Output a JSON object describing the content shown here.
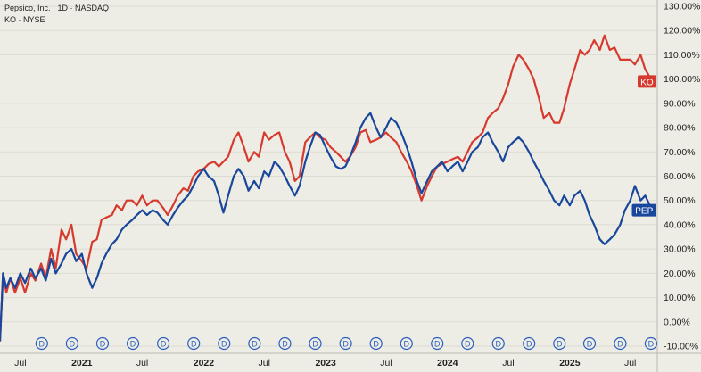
{
  "header": {
    "main_symbol": "Pepsico, Inc. · 1D · NASDAQ",
    "compare_symbol": "KO · NYSE"
  },
  "chart_data": {
    "type": "line",
    "title": "",
    "xlabel": "",
    "ylabel": "",
    "y_unit": "%",
    "ylim": [
      -10,
      130
    ],
    "grid": "horizontal",
    "y_ticks": [
      "130.00%",
      "120.00%",
      "110.00%",
      "100.00%",
      "90.00%",
      "80.00%",
      "70.00%",
      "60.00%",
      "50.00%",
      "40.00%",
      "30.00%",
      "20.00%",
      "10.00%",
      "0.00%",
      "-10.00%"
    ],
    "x_range": [
      "2020-05-01",
      "2025-09-20"
    ],
    "x_ticks": [
      {
        "date": "2020-07-01",
        "label": "Jul",
        "bold": false
      },
      {
        "date": "2021-01-01",
        "label": "2021",
        "bold": true
      },
      {
        "date": "2021-07-01",
        "label": "Jul",
        "bold": false
      },
      {
        "date": "2022-01-01",
        "label": "2022",
        "bold": true
      },
      {
        "date": "2022-07-01",
        "label": "Jul",
        "bold": false
      },
      {
        "date": "2023-01-01",
        "label": "2023",
        "bold": true
      },
      {
        "date": "2023-07-01",
        "label": "Jul",
        "bold": false
      },
      {
        "date": "2024-01-01",
        "label": "2024",
        "bold": true
      },
      {
        "date": "2024-07-01",
        "label": "Jul",
        "bold": false
      },
      {
        "date": "2025-01-01",
        "label": "2025",
        "bold": true
      },
      {
        "date": "2025-07-01",
        "label": "Jul",
        "bold": false
      }
    ],
    "dividend_marker": {
      "label": "D",
      "dates": [
        "2020-09-03",
        "2020-12-03",
        "2021-03-04",
        "2021-06-03",
        "2021-09-02",
        "2021-12-02",
        "2022-03-03",
        "2022-06-02",
        "2022-09-01",
        "2022-12-01",
        "2023-03-02",
        "2023-06-01",
        "2023-08-31",
        "2023-12-01",
        "2024-03-01",
        "2024-06-01",
        "2024-09-01",
        "2024-12-01",
        "2025-03-01",
        "2025-06-01",
        "2025-09-01"
      ]
    },
    "series": [
      {
        "name": "KO",
        "color": "#d63a2f",
        "last_value": 99,
        "points": [
          [
            "2020-05-01",
            -8
          ],
          [
            "2020-05-10",
            20
          ],
          [
            "2020-05-20",
            12
          ],
          [
            "2020-06-01",
            18
          ],
          [
            "2020-06-15",
            12
          ],
          [
            "2020-07-01",
            18
          ],
          [
            "2020-07-15",
            12
          ],
          [
            "2020-08-01",
            20
          ],
          [
            "2020-08-15",
            17
          ],
          [
            "2020-09-01",
            24
          ],
          [
            "2020-09-15",
            18
          ],
          [
            "2020-10-01",
            30
          ],
          [
            "2020-10-15",
            22
          ],
          [
            "2020-11-01",
            38
          ],
          [
            "2020-11-15",
            34
          ],
          [
            "2020-12-01",
            40
          ],
          [
            "2020-12-15",
            28
          ],
          [
            "2021-01-01",
            25
          ],
          [
            "2021-01-15",
            22
          ],
          [
            "2021-02-01",
            33
          ],
          [
            "2021-02-15",
            34
          ],
          [
            "2021-03-01",
            42
          ],
          [
            "2021-03-15",
            43
          ],
          [
            "2021-04-01",
            44
          ],
          [
            "2021-04-15",
            48
          ],
          [
            "2021-05-01",
            46
          ],
          [
            "2021-05-15",
            50
          ],
          [
            "2021-06-01",
            50
          ],
          [
            "2021-06-15",
            48
          ],
          [
            "2021-07-01",
            52
          ],
          [
            "2021-07-15",
            48
          ],
          [
            "2021-08-01",
            50
          ],
          [
            "2021-08-15",
            50
          ],
          [
            "2021-09-01",
            47
          ],
          [
            "2021-09-15",
            44
          ],
          [
            "2021-10-01",
            48
          ],
          [
            "2021-10-15",
            52
          ],
          [
            "2021-11-01",
            55
          ],
          [
            "2021-11-15",
            54
          ],
          [
            "2021-12-01",
            60
          ],
          [
            "2021-12-15",
            62
          ],
          [
            "2022-01-01",
            63
          ],
          [
            "2022-01-15",
            65
          ],
          [
            "2022-02-01",
            66
          ],
          [
            "2022-02-15",
            64
          ],
          [
            "2022-03-01",
            66
          ],
          [
            "2022-03-15",
            68
          ],
          [
            "2022-04-01",
            75
          ],
          [
            "2022-04-15",
            78
          ],
          [
            "2022-05-01",
            72
          ],
          [
            "2022-05-15",
            66
          ],
          [
            "2022-06-01",
            70
          ],
          [
            "2022-06-15",
            68
          ],
          [
            "2022-07-01",
            78
          ],
          [
            "2022-07-15",
            75
          ],
          [
            "2022-08-01",
            77
          ],
          [
            "2022-08-15",
            78
          ],
          [
            "2022-09-01",
            70
          ],
          [
            "2022-09-15",
            66
          ],
          [
            "2022-10-01",
            58
          ],
          [
            "2022-10-15",
            60
          ],
          [
            "2022-11-01",
            74
          ],
          [
            "2022-11-15",
            76
          ],
          [
            "2022-12-01",
            78
          ],
          [
            "2022-12-15",
            76
          ],
          [
            "2023-01-01",
            75
          ],
          [
            "2023-01-15",
            72
          ],
          [
            "2023-02-01",
            70
          ],
          [
            "2023-02-15",
            68
          ],
          [
            "2023-03-01",
            66
          ],
          [
            "2023-03-15",
            68
          ],
          [
            "2023-04-01",
            72
          ],
          [
            "2023-04-15",
            78
          ],
          [
            "2023-05-01",
            79
          ],
          [
            "2023-05-15",
            74
          ],
          [
            "2023-06-01",
            75
          ],
          [
            "2023-06-15",
            76
          ],
          [
            "2023-07-01",
            78
          ],
          [
            "2023-07-15",
            76
          ],
          [
            "2023-08-01",
            74
          ],
          [
            "2023-08-15",
            70
          ],
          [
            "2023-09-01",
            66
          ],
          [
            "2023-09-15",
            62
          ],
          [
            "2023-10-01",
            56
          ],
          [
            "2023-10-15",
            50
          ],
          [
            "2023-11-01",
            56
          ],
          [
            "2023-11-15",
            60
          ],
          [
            "2023-12-01",
            64
          ],
          [
            "2023-12-15",
            65
          ],
          [
            "2024-01-01",
            66
          ],
          [
            "2024-01-15",
            67
          ],
          [
            "2024-02-01",
            68
          ],
          [
            "2024-02-15",
            66
          ],
          [
            "2024-03-01",
            70
          ],
          [
            "2024-03-15",
            74
          ],
          [
            "2024-04-01",
            76
          ],
          [
            "2024-04-15",
            78
          ],
          [
            "2024-05-01",
            84
          ],
          [
            "2024-05-15",
            86
          ],
          [
            "2024-06-01",
            88
          ],
          [
            "2024-06-15",
            92
          ],
          [
            "2024-07-01",
            98
          ],
          [
            "2024-07-15",
            105
          ],
          [
            "2024-08-01",
            110
          ],
          [
            "2024-08-15",
            108
          ],
          [
            "2024-09-01",
            104
          ],
          [
            "2024-09-15",
            100
          ],
          [
            "2024-10-01",
            92
          ],
          [
            "2024-10-15",
            84
          ],
          [
            "2024-11-01",
            86
          ],
          [
            "2024-11-15",
            82
          ],
          [
            "2024-12-01",
            82
          ],
          [
            "2024-12-15",
            88
          ],
          [
            "2025-01-01",
            98
          ],
          [
            "2025-01-15",
            104
          ],
          [
            "2025-02-01",
            112
          ],
          [
            "2025-02-15",
            110
          ],
          [
            "2025-03-01",
            112
          ],
          [
            "2025-03-15",
            116
          ],
          [
            "2025-04-01",
            112
          ],
          [
            "2025-04-15",
            118
          ],
          [
            "2025-05-01",
            112
          ],
          [
            "2025-05-15",
            113
          ],
          [
            "2025-06-01",
            108
          ],
          [
            "2025-06-15",
            108
          ],
          [
            "2025-07-01",
            108
          ],
          [
            "2025-07-15",
            106
          ],
          [
            "2025-08-01",
            110
          ],
          [
            "2025-08-15",
            104
          ],
          [
            "2025-09-01",
            100
          ],
          [
            "2025-09-06",
            99
          ]
        ]
      },
      {
        "name": "PEP",
        "color": "#18479b",
        "last_value": 46,
        "points": [
          [
            "2020-05-01",
            -8
          ],
          [
            "2020-05-10",
            20
          ],
          [
            "2020-05-20",
            14
          ],
          [
            "2020-06-01",
            18
          ],
          [
            "2020-06-15",
            14
          ],
          [
            "2020-07-01",
            20
          ],
          [
            "2020-07-15",
            16
          ],
          [
            "2020-08-01",
            22
          ],
          [
            "2020-08-15",
            18
          ],
          [
            "2020-09-01",
            22
          ],
          [
            "2020-09-15",
            17
          ],
          [
            "2020-10-01",
            26
          ],
          [
            "2020-10-15",
            20
          ],
          [
            "2020-11-01",
            24
          ],
          [
            "2020-11-15",
            28
          ],
          [
            "2020-12-01",
            30
          ],
          [
            "2020-12-15",
            25
          ],
          [
            "2021-01-01",
            28
          ],
          [
            "2021-01-15",
            20
          ],
          [
            "2021-02-01",
            14
          ],
          [
            "2021-02-15",
            18
          ],
          [
            "2021-03-01",
            24
          ],
          [
            "2021-03-15",
            28
          ],
          [
            "2021-04-01",
            32
          ],
          [
            "2021-04-15",
            34
          ],
          [
            "2021-05-01",
            38
          ],
          [
            "2021-05-15",
            40
          ],
          [
            "2021-06-01",
            42
          ],
          [
            "2021-06-15",
            44
          ],
          [
            "2021-07-01",
            46
          ],
          [
            "2021-07-15",
            44
          ],
          [
            "2021-08-01",
            46
          ],
          [
            "2021-08-15",
            45
          ],
          [
            "2021-09-01",
            42
          ],
          [
            "2021-09-15",
            40
          ],
          [
            "2021-10-01",
            44
          ],
          [
            "2021-10-15",
            47
          ],
          [
            "2021-11-01",
            50
          ],
          [
            "2021-11-15",
            52
          ],
          [
            "2021-12-01",
            56
          ],
          [
            "2021-12-15",
            60
          ],
          [
            "2022-01-01",
            63
          ],
          [
            "2022-01-15",
            60
          ],
          [
            "2022-02-01",
            58
          ],
          [
            "2022-02-15",
            52
          ],
          [
            "2022-03-01",
            45
          ],
          [
            "2022-03-15",
            52
          ],
          [
            "2022-04-01",
            60
          ],
          [
            "2022-04-15",
            63
          ],
          [
            "2022-05-01",
            60
          ],
          [
            "2022-05-15",
            54
          ],
          [
            "2022-06-01",
            58
          ],
          [
            "2022-06-15",
            55
          ],
          [
            "2022-07-01",
            62
          ],
          [
            "2022-07-15",
            60
          ],
          [
            "2022-08-01",
            66
          ],
          [
            "2022-08-15",
            64
          ],
          [
            "2022-09-01",
            60
          ],
          [
            "2022-09-15",
            56
          ],
          [
            "2022-10-01",
            52
          ],
          [
            "2022-10-15",
            56
          ],
          [
            "2022-11-01",
            66
          ],
          [
            "2022-11-15",
            72
          ],
          [
            "2022-12-01",
            78
          ],
          [
            "2022-12-15",
            77
          ],
          [
            "2023-01-01",
            72
          ],
          [
            "2023-01-15",
            68
          ],
          [
            "2023-02-01",
            64
          ],
          [
            "2023-02-15",
            63
          ],
          [
            "2023-03-01",
            64
          ],
          [
            "2023-03-15",
            68
          ],
          [
            "2023-04-01",
            74
          ],
          [
            "2023-04-15",
            80
          ],
          [
            "2023-05-01",
            84
          ],
          [
            "2023-05-15",
            86
          ],
          [
            "2023-06-01",
            80
          ],
          [
            "2023-06-15",
            76
          ],
          [
            "2023-07-01",
            80
          ],
          [
            "2023-07-15",
            84
          ],
          [
            "2023-08-01",
            82
          ],
          [
            "2023-08-15",
            78
          ],
          [
            "2023-09-01",
            72
          ],
          [
            "2023-09-15",
            66
          ],
          [
            "2023-10-01",
            58
          ],
          [
            "2023-10-15",
            53
          ],
          [
            "2023-11-01",
            58
          ],
          [
            "2023-11-15",
            62
          ],
          [
            "2023-12-01",
            64
          ],
          [
            "2023-12-15",
            66
          ],
          [
            "2024-01-01",
            62
          ],
          [
            "2024-01-15",
            64
          ],
          [
            "2024-02-01",
            66
          ],
          [
            "2024-02-15",
            62
          ],
          [
            "2024-03-01",
            66
          ],
          [
            "2024-03-15",
            70
          ],
          [
            "2024-04-01",
            72
          ],
          [
            "2024-04-15",
            76
          ],
          [
            "2024-05-01",
            78
          ],
          [
            "2024-05-15",
            74
          ],
          [
            "2024-06-01",
            70
          ],
          [
            "2024-06-15",
            66
          ],
          [
            "2024-07-01",
            72
          ],
          [
            "2024-07-15",
            74
          ],
          [
            "2024-08-01",
            76
          ],
          [
            "2024-08-15",
            74
          ],
          [
            "2024-09-01",
            70
          ],
          [
            "2024-09-15",
            66
          ],
          [
            "2024-10-01",
            62
          ],
          [
            "2024-10-15",
            58
          ],
          [
            "2024-11-01",
            54
          ],
          [
            "2024-11-15",
            50
          ],
          [
            "2024-12-01",
            48
          ],
          [
            "2024-12-15",
            52
          ],
          [
            "2025-01-01",
            48
          ],
          [
            "2025-01-15",
            52
          ],
          [
            "2025-02-01",
            54
          ],
          [
            "2025-02-15",
            50
          ],
          [
            "2025-03-01",
            44
          ],
          [
            "2025-03-15",
            40
          ],
          [
            "2025-04-01",
            34
          ],
          [
            "2025-04-15",
            32
          ],
          [
            "2025-05-01",
            34
          ],
          [
            "2025-05-15",
            36
          ],
          [
            "2025-06-01",
            40
          ],
          [
            "2025-06-15",
            46
          ],
          [
            "2025-07-01",
            50
          ],
          [
            "2025-07-15",
            56
          ],
          [
            "2025-08-01",
            50
          ],
          [
            "2025-08-15",
            52
          ],
          [
            "2025-09-01",
            47
          ],
          [
            "2025-09-06",
            46
          ]
        ]
      }
    ]
  }
}
